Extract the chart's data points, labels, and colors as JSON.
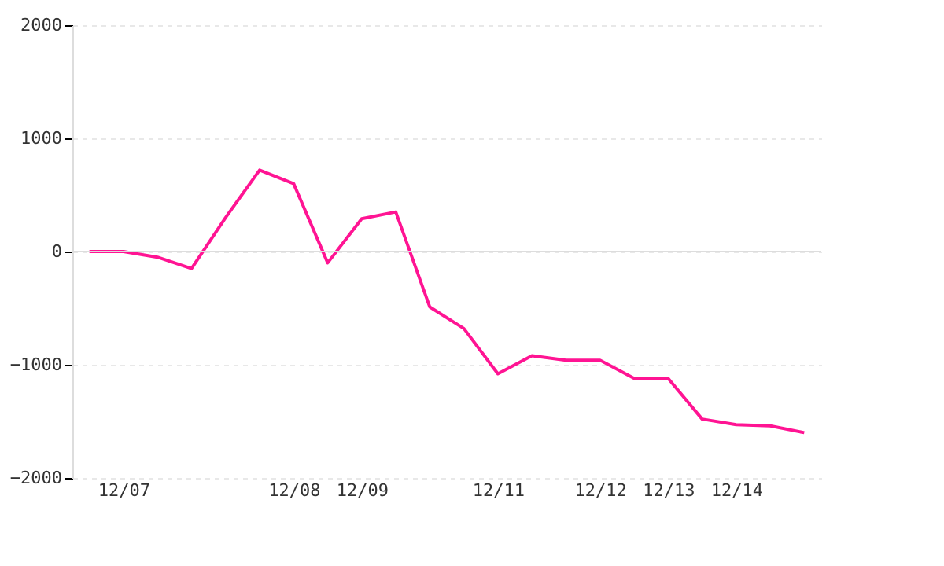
{
  "chart_data": {
    "type": "line",
    "categories": [
      null,
      "12/07",
      null,
      null,
      null,
      null,
      "12/08",
      null,
      "12/09",
      null,
      null,
      null,
      "12/11",
      null,
      null,
      "12/12",
      null,
      "12/13",
      null,
      "12/14",
      null,
      null
    ],
    "series": [
      {
        "color": "#ff1493",
        "values": [
          0,
          0,
          -50,
          -150,
          300,
          720,
          600,
          -100,
          290,
          350,
          -490,
          -680,
          -1080,
          -920,
          -960,
          -960,
          -1120,
          -1120,
          -1480,
          -1530,
          -1540,
          -1600
        ]
      }
    ],
    "ylim": [
      -2000,
      2000
    ],
    "yticks": [
      -2000,
      -1000,
      0,
      1000,
      2000
    ],
    "grid": "y",
    "ref_lines": [
      {
        "axis": "y",
        "value": 0,
        "color": "#dddddd"
      }
    ],
    "marker": "none",
    "line_style": "solid"
  }
}
